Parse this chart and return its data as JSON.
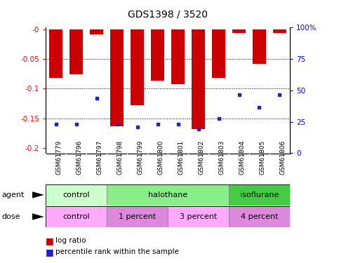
{
  "title": "GDS1398 / 3520",
  "samples": [
    "GSM61779",
    "GSM61796",
    "GSM61797",
    "GSM61798",
    "GSM61799",
    "GSM61800",
    "GSM61801",
    "GSM61802",
    "GSM61803",
    "GSM61804",
    "GSM61805",
    "GSM61806"
  ],
  "log_ratios": [
    -0.082,
    -0.076,
    -0.008,
    -0.163,
    -0.128,
    -0.086,
    -0.092,
    -0.168,
    -0.082,
    -0.006,
    -0.058,
    -0.006
  ],
  "percentile_ranks": [
    20,
    20,
    42,
    20,
    18,
    20,
    20,
    16,
    25,
    45,
    34,
    45
  ],
  "bar_color": "#cc0000",
  "dot_color": "#2222cc",
  "ylim_left": [
    -0.21,
    0.003
  ],
  "ylim_right": [
    -0.525,
    100
  ],
  "yticks_left": [
    0.0,
    -0.05,
    -0.1,
    -0.15,
    -0.2
  ],
  "ytick_labels_left": [
    "-0",
    "-0.05",
    "-0.1",
    "-0.15",
    "-0.2"
  ],
  "yticks_right": [
    0,
    25,
    50,
    75,
    100
  ],
  "ytick_labels_right": [
    "0",
    "25",
    "50",
    "75",
    "100%"
  ],
  "agent_groups": [
    {
      "label": "control",
      "start": 0,
      "end": 3,
      "color": "#ccffcc"
    },
    {
      "label": "halothane",
      "start": 3,
      "end": 9,
      "color": "#88ee88"
    },
    {
      "label": "isoflurane",
      "start": 9,
      "end": 12,
      "color": "#44cc44"
    }
  ],
  "dose_groups": [
    {
      "label": "control",
      "start": 0,
      "end": 3,
      "color": "#ffaaff"
    },
    {
      "label": "1 percent",
      "start": 3,
      "end": 6,
      "color": "#dd88dd"
    },
    {
      "label": "3 percent",
      "start": 6,
      "end": 9,
      "color": "#ffaaff"
    },
    {
      "label": "4 percent",
      "start": 9,
      "end": 12,
      "color": "#dd88dd"
    }
  ],
  "legend_red": "log ratio",
  "legend_blue": "percentile rank within the sample",
  "tick_bg_color": "#cccccc"
}
